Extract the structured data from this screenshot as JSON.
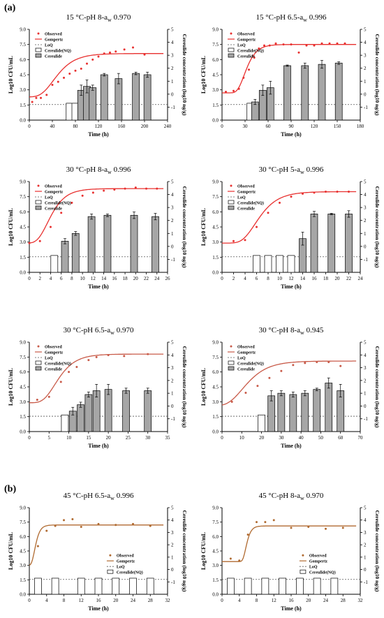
{
  "figure": {
    "panel_labels": [
      "(a)",
      "(b)"
    ]
  },
  "chart_data": [
    {
      "type": "bar",
      "title_main": "15 °C-pH 8-a",
      "title_sub": "w",
      "title_tail": " 0.970",
      "xlabel": "Time (h)",
      "ylabel_left": "Log10 CFU/mL",
      "ylabel_right": "Cereulide concentration (log10 ng/g)",
      "xlim": [
        0,
        240
      ],
      "xticks": [
        0,
        40,
        80,
        120,
        160,
        200,
        240
      ],
      "ylim_left": [
        0,
        9
      ],
      "yticks_left": [
        0,
        1.5,
        3,
        4.5,
        6,
        7.5,
        9
      ],
      "ylim_right": [
        -2,
        5
      ],
      "yticks_right": [
        -1,
        0,
        1,
        2,
        3,
        4,
        5
      ],
      "loq_right": -0.8,
      "legend": [
        "Observed",
        "Gompertz",
        "LoQ",
        "Cereulide(NQ)",
        "Cereulide"
      ],
      "curve_color": "#e8302f",
      "observed": {
        "x": [
          5,
          12,
          20,
          30,
          40,
          50,
          60,
          70,
          80,
          90,
          100,
          110,
          120,
          130,
          140,
          150,
          165,
          180,
          200
        ],
        "y": [
          1.8,
          2.2,
          2.2,
          2.5,
          3.5,
          3.8,
          4.2,
          4.6,
          4.9,
          5.1,
          5.6,
          6.0,
          6.3,
          6.6,
          6.7,
          6.8,
          7.0,
          7.2,
          6.5
        ]
      },
      "gompertz": {
        "N0": 2.3,
        "Nmax": 6.6,
        "mu": 0.075,
        "lag": 20
      },
      "bars": [
        {
          "x": 70,
          "value": -0.7,
          "nq": true,
          "err": 0
        },
        {
          "x": 80,
          "value": -0.7,
          "nq": true,
          "err": 0
        },
        {
          "x": 90,
          "value": 0.3,
          "nq": false,
          "err": 0.4
        },
        {
          "x": 100,
          "value": 0.6,
          "nq": false,
          "err": 0.5
        },
        {
          "x": 110,
          "value": 0.5,
          "nq": false,
          "err": 0.2
        },
        {
          "x": 130,
          "value": 1.5,
          "nq": false,
          "err": 0.1
        },
        {
          "x": 155,
          "value": 1.2,
          "nq": false,
          "err": 0.4
        },
        {
          "x": 185,
          "value": 1.6,
          "nq": false,
          "err": 0.1
        },
        {
          "x": 205,
          "value": 1.5,
          "nq": false,
          "err": 0.2
        }
      ]
    },
    {
      "type": "bar",
      "title_main": "15 °C-pH 6.5-a",
      "title_sub": "w",
      "title_tail": " 0.996",
      "xlabel": "Time (h)",
      "ylabel_left": "Log10 CFU/mL",
      "ylabel_right": "Cereulide concentration (log10 ng/g)",
      "xlim": [
        0,
        180
      ],
      "xticks": [
        0,
        30,
        60,
        90,
        120,
        150,
        180
      ],
      "ylim_left": [
        0,
        9
      ],
      "yticks_left": [
        0,
        1.5,
        3,
        4.5,
        6,
        7.5,
        9
      ],
      "ylim_right": [
        -2,
        5
      ],
      "yticks_right": [
        -1,
        0,
        1,
        2,
        3,
        4,
        5
      ],
      "loq_right": -0.8,
      "legend": [
        "Observed",
        "Gompertz",
        "LoQ",
        "Cereulide(NQ)",
        "Cereulide"
      ],
      "curve_color": "#e8302f",
      "observed": {
        "x": [
          5,
          15,
          22,
          28,
          35,
          42,
          48,
          55,
          62,
          70,
          80,
          90,
          100,
          110,
          120,
          130,
          140,
          150,
          160
        ],
        "y": [
          2.8,
          2.9,
          3.1,
          4.2,
          5.0,
          6.2,
          7.1,
          7.4,
          7.4,
          7.6,
          7.5,
          7.5,
          6.7,
          7.4,
          7.4,
          7.6,
          7.6,
          7.6,
          7.6
        ]
      },
      "gompertz": {
        "N0": 2.7,
        "Nmax": 7.5,
        "mu": 0.2,
        "lag": 20
      },
      "bars": [
        {
          "x": 37,
          "value": -0.7,
          "nq": true,
          "err": 0
        },
        {
          "x": 43,
          "value": -0.6,
          "nq": false,
          "err": 0.2
        },
        {
          "x": 53,
          "value": 0.3,
          "nq": false,
          "err": 0.4
        },
        {
          "x": 63,
          "value": 0.5,
          "nq": false,
          "err": 0.5
        },
        {
          "x": 85,
          "value": 2.2,
          "nq": false,
          "err": 0.05
        },
        {
          "x": 108,
          "value": 2.2,
          "nq": false,
          "err": 0.2
        },
        {
          "x": 130,
          "value": 2.3,
          "nq": false,
          "err": 0.3
        },
        {
          "x": 152,
          "value": 2.4,
          "nq": false,
          "err": 0.1
        }
      ]
    },
    {
      "type": "bar",
      "title_main": "30 °C-pH 8-a",
      "title_sub": "w",
      "title_tail": " 0.996",
      "xlabel": "Time (h)",
      "ylabel_left": "Log10 CFU/mL",
      "ylabel_right": "Cereulide concentration (log10 ng/g)",
      "xlim": [
        0,
        26
      ],
      "xticks": [
        0,
        2,
        4,
        6,
        8,
        10,
        12,
        14,
        16,
        18,
        20,
        22,
        24,
        26
      ],
      "ylim_left": [
        0,
        9
      ],
      "yticks_left": [
        0,
        1.5,
        3,
        4.5,
        6,
        7.5,
        9
      ],
      "ylim_right": [
        -2,
        5
      ],
      "yticks_right": [
        -1,
        0,
        1,
        2,
        3,
        4,
        5
      ],
      "loq_right": -0.8,
      "legend": [
        "Observed",
        "Gompertz",
        "LoQ",
        "Cereulide(NQ)",
        "Cereulide"
      ],
      "curve_color": "#e8302f",
      "observed": {
        "x": [
          0,
          2,
          4,
          6,
          8,
          10,
          12,
          14,
          16,
          18,
          20,
          22,
          24
        ],
        "y": [
          2.9,
          3.1,
          4.5,
          5.9,
          6.9,
          7.6,
          7.9,
          8.1,
          8.2,
          8.3,
          8.4,
          8.3,
          8.3
        ]
      },
      "gompertz": {
        "N0": 2.9,
        "Nmax": 8.3,
        "mu": 1.05,
        "lag": 1.5
      },
      "bars": [
        {
          "x": 4.7,
          "value": -0.7,
          "nq": true,
          "err": 0
        },
        {
          "x": 6.7,
          "value": 0.4,
          "nq": false,
          "err": 0.2
        },
        {
          "x": 8.7,
          "value": 1.0,
          "nq": false,
          "err": 0.15
        },
        {
          "x": 11.7,
          "value": 2.3,
          "nq": false,
          "err": 0.2
        },
        {
          "x": 14.7,
          "value": 2.4,
          "nq": false,
          "err": 0.1
        },
        {
          "x": 19.7,
          "value": 2.4,
          "nq": false,
          "err": 0.25
        },
        {
          "x": 23.7,
          "value": 2.3,
          "nq": false,
          "err": 0.25
        }
      ]
    },
    {
      "type": "bar",
      "title_main": "30 °C-pH 5-a",
      "title_sub": "w",
      "title_tail": " 0.996",
      "xlabel": "Time (h)",
      "ylabel_left": "Log10 CFU/mL",
      "ylabel_right": "Cereulide concentration (log10 ng/g)",
      "xlim": [
        0,
        24
      ],
      "xticks": [
        0,
        2,
        4,
        6,
        8,
        10,
        12,
        14,
        16,
        18,
        20,
        22,
        24
      ],
      "ylim_left": [
        0,
        9
      ],
      "yticks_left": [
        0,
        1.5,
        3,
        4.5,
        6,
        7.5,
        9
      ],
      "ylim_right": [
        -2,
        5
      ],
      "yticks_right": [
        -1,
        0,
        1,
        2,
        3,
        4,
        5
      ],
      "loq_right": -0.8,
      "legend": [
        "Observed",
        "Gompertz",
        "LoQ",
        "Cereulide(NQ)",
        "Cereulide"
      ],
      "curve_color": "#e8302f",
      "observed": {
        "x": [
          2,
          4,
          6,
          8,
          10,
          12,
          14,
          16,
          18,
          20,
          22
        ],
        "y": [
          3.1,
          3.2,
          4.5,
          5.9,
          6.9,
          7.5,
          7.8,
          7.9,
          8.0,
          8.0,
          8.0
        ]
      },
      "gompertz": {
        "N0": 2.9,
        "Nmax": 8.0,
        "mu": 0.85,
        "lag": 3.5
      },
      "bars": [
        {
          "x": 6,
          "value": -0.7,
          "nq": true,
          "err": 0
        },
        {
          "x": 8,
          "value": -0.7,
          "nq": true,
          "err": 0
        },
        {
          "x": 10,
          "value": -0.7,
          "nq": true,
          "err": 0
        },
        {
          "x": 12,
          "value": -0.7,
          "nq": true,
          "err": 0
        },
        {
          "x": 14,
          "value": 0.6,
          "nq": false,
          "err": 0.5
        },
        {
          "x": 16,
          "value": 2.5,
          "nq": false,
          "err": 0.2
        },
        {
          "x": 19,
          "value": 2.5,
          "nq": false,
          "err": 0.05
        },
        {
          "x": 22,
          "value": 2.5,
          "nq": false,
          "err": 0.25
        }
      ]
    },
    {
      "type": "bar",
      "title_main": "30 °C-pH 6.5-a",
      "title_sub": "w",
      "title_tail": " 0.970",
      "xlabel": "Time (h)",
      "ylabel_left": "Log10 CFU/mL",
      "ylabel_right": "Cereulide concentration (log10 ng/g)",
      "xlim": [
        0,
        35
      ],
      "xticks": [
        0,
        5,
        10,
        15,
        20,
        25,
        30,
        35
      ],
      "ylim_left": [
        0,
        9
      ],
      "yticks_left": [
        0,
        1.5,
        3,
        4.5,
        6,
        7.5,
        9
      ],
      "ylim_right": [
        -2,
        5
      ],
      "yticks_right": [
        -1,
        0,
        1,
        2,
        3,
        4,
        5
      ],
      "loq_right": -0.8,
      "legend": [
        "Observed",
        "Gompertz",
        "LoQ",
        "Cereulide(NQ)",
        "Cereulide"
      ],
      "curve_color": "#c85a48",
      "observed": {
        "x": [
          2,
          5,
          8,
          10,
          12,
          15,
          17,
          20,
          24,
          30
        ],
        "y": [
          3.2,
          3.5,
          5.0,
          6.0,
          6.5,
          7.2,
          7.5,
          7.7,
          7.6,
          7.8
        ]
      },
      "gompertz": {
        "N0": 2.9,
        "Nmax": 7.8,
        "mu": 0.62,
        "lag": 3.5
      },
      "bars": [
        {
          "x": 9,
          "value": -0.7,
          "nq": true,
          "err": 0
        },
        {
          "x": 11,
          "value": -0.4,
          "nq": false,
          "err": 0.3
        },
        {
          "x": 13,
          "value": 0.1,
          "nq": false,
          "err": 0.2
        },
        {
          "x": 15,
          "value": 0.9,
          "nq": false,
          "err": 0.2
        },
        {
          "x": 17,
          "value": 1.2,
          "nq": false,
          "err": 0.5
        },
        {
          "x": 20,
          "value": 1.3,
          "nq": false,
          "err": 0.4
        },
        {
          "x": 24.5,
          "value": 1.2,
          "nq": false,
          "err": 0.2
        },
        {
          "x": 30,
          "value": 1.2,
          "nq": false,
          "err": 0.2
        }
      ]
    },
    {
      "type": "bar",
      "title_main": "30 °C-pH 8-a",
      "title_sub": "w",
      "title_tail": " 0.945",
      "xlabel": "Time (h)",
      "ylabel_left": "Log10 CFU/mL",
      "ylabel_right": "Cereulide concentration (log10 ng/g)",
      "xlim": [
        0,
        70
      ],
      "xticks": [
        0,
        10,
        20,
        30,
        40,
        50,
        60,
        70
      ],
      "ylim_left": [
        0,
        9
      ],
      "yticks_left": [
        0,
        1.5,
        3,
        4.5,
        6,
        7.5,
        9
      ],
      "ylim_right": [
        -2,
        5
      ],
      "yticks_right": [
        -1,
        0,
        1,
        2,
        3,
        4,
        5
      ],
      "loq_right": -0.8,
      "legend": [
        "Observed",
        "Gompertz",
        "LoQ",
        "Cereulide(NQ)",
        "Cereulide"
      ],
      "curve_color": "#c85a48",
      "observed": {
        "x": [
          5,
          12,
          18,
          24,
          30,
          36,
          42,
          48,
          54,
          60
        ],
        "y": [
          3.0,
          3.9,
          4.6,
          5.4,
          6.1,
          6.7,
          6.9,
          7.0,
          7.0,
          6.6
        ]
      },
      "gompertz": {
        "N0": 2.6,
        "Nmax": 7.1,
        "mu": 0.23,
        "lag": 3
      },
      "bars": [
        {
          "x": 20,
          "value": -0.7,
          "nq": true,
          "err": 0
        },
        {
          "x": 25,
          "value": 0.8,
          "nq": false,
          "err": 0.4
        },
        {
          "x": 30,
          "value": 1.0,
          "nq": false,
          "err": 0.2
        },
        {
          "x": 36,
          "value": 0.9,
          "nq": false,
          "err": 0.2
        },
        {
          "x": 42,
          "value": 1.0,
          "nq": false,
          "err": 0.2
        },
        {
          "x": 48,
          "value": 1.3,
          "nq": false,
          "err": 0.1
        },
        {
          "x": 54,
          "value": 1.8,
          "nq": false,
          "err": 0.4
        },
        {
          "x": 60,
          "value": 1.2,
          "nq": false,
          "err": 0.5
        }
      ]
    },
    {
      "type": "bar",
      "title_main": "45 °C-pH 6.5-a",
      "title_sub": "w",
      "title_tail": " 0.996",
      "xlabel": "Time (h)",
      "ylabel_left": "Log10 CFU/mL",
      "ylabel_right": "Cereulide concentration (log10 ng/g)",
      "xlim": [
        0,
        32
      ],
      "xticks": [
        0,
        4,
        8,
        12,
        16,
        20,
        24,
        28,
        32
      ],
      "ylim_left": [
        0,
        9
      ],
      "yticks_left": [
        0,
        1.5,
        3,
        4.5,
        6,
        7.5,
        9
      ],
      "ylim_right": [
        -2,
        5
      ],
      "yticks_right": [
        -1,
        0,
        1,
        2,
        3,
        4,
        5
      ],
      "loq_right": -0.8,
      "legend": [
        "Observed",
        "Gompertz",
        "LoQ",
        "Cereulide(NQ)"
      ],
      "legend_bottom": true,
      "curve_color": "#b06a30",
      "observed": {
        "x": [
          2,
          4,
          6,
          8,
          10,
          12,
          16,
          20,
          24,
          28
        ],
        "y": [
          5.0,
          6.6,
          7.1,
          7.7,
          7.8,
          7.0,
          7.3,
          7.2,
          7.3,
          7.1
        ]
      },
      "gompertz": {
        "N0": 3.0,
        "Nmax": 7.2,
        "mu": 2.2,
        "lag": 0.5
      },
      "bars": [
        {
          "x": 2,
          "value": -0.7,
          "nq": true,
          "err": 0
        },
        {
          "x": 6,
          "value": -0.7,
          "nq": true,
          "err": 0
        },
        {
          "x": 12,
          "value": -0.7,
          "nq": true,
          "err": 0
        },
        {
          "x": 16,
          "value": -0.7,
          "nq": true,
          "err": 0
        },
        {
          "x": 20,
          "value": -0.7,
          "nq": true,
          "err": 0
        },
        {
          "x": 24,
          "value": -0.7,
          "nq": true,
          "err": 0
        },
        {
          "x": 28,
          "value": -0.7,
          "nq": true,
          "err": 0
        }
      ]
    },
    {
      "type": "bar",
      "title_main": "45 °C-pH 8-a",
      "title_sub": "w",
      "title_tail": " 0.970",
      "xlabel": "Time (h)",
      "ylabel_left": "Log10 CFU/mL",
      "ylabel_right": "Cereulide concentration (log10 ng/g)",
      "xlim": [
        0,
        32
      ],
      "xticks": [
        0,
        4,
        8,
        12,
        16,
        20,
        24,
        28,
        32
      ],
      "ylim_left": [
        0,
        9
      ],
      "yticks_left": [
        0,
        1.5,
        3,
        4.5,
        6,
        7.5,
        9
      ],
      "ylim_right": [
        -2,
        5
      ],
      "yticks_right": [
        -1,
        0,
        1,
        2,
        3,
        4,
        5
      ],
      "loq_right": -0.8,
      "legend": [
        "Observed",
        "Gompertz",
        "LoQ",
        "Cereulide(NQ)"
      ],
      "legend_bottom": true,
      "curve_color": "#b06a30",
      "observed": {
        "x": [
          2,
          4,
          6,
          8,
          10,
          12,
          16,
          20,
          24,
          28
        ],
        "y": [
          3.7,
          3.5,
          6.2,
          7.5,
          7.5,
          7.7,
          6.9,
          7.0,
          6.8,
          6.9
        ]
      },
      "gompertz": {
        "N0": 3.4,
        "Nmax": 7.1,
        "mu": 2.0,
        "lag": 4.8
      },
      "bars": [
        {
          "x": 2,
          "value": -0.7,
          "nq": true,
          "err": 0
        },
        {
          "x": 6,
          "value": -0.7,
          "nq": true,
          "err": 0
        },
        {
          "x": 10,
          "value": -0.7,
          "nq": true,
          "err": 0
        },
        {
          "x": 14,
          "value": -0.7,
          "nq": true,
          "err": 0
        },
        {
          "x": 18,
          "value": -0.7,
          "nq": true,
          "err": 0
        },
        {
          "x": 22,
          "value": -0.7,
          "nq": true,
          "err": 0
        },
        {
          "x": 26,
          "value": -0.7,
          "nq": true,
          "err": 0
        }
      ]
    }
  ]
}
